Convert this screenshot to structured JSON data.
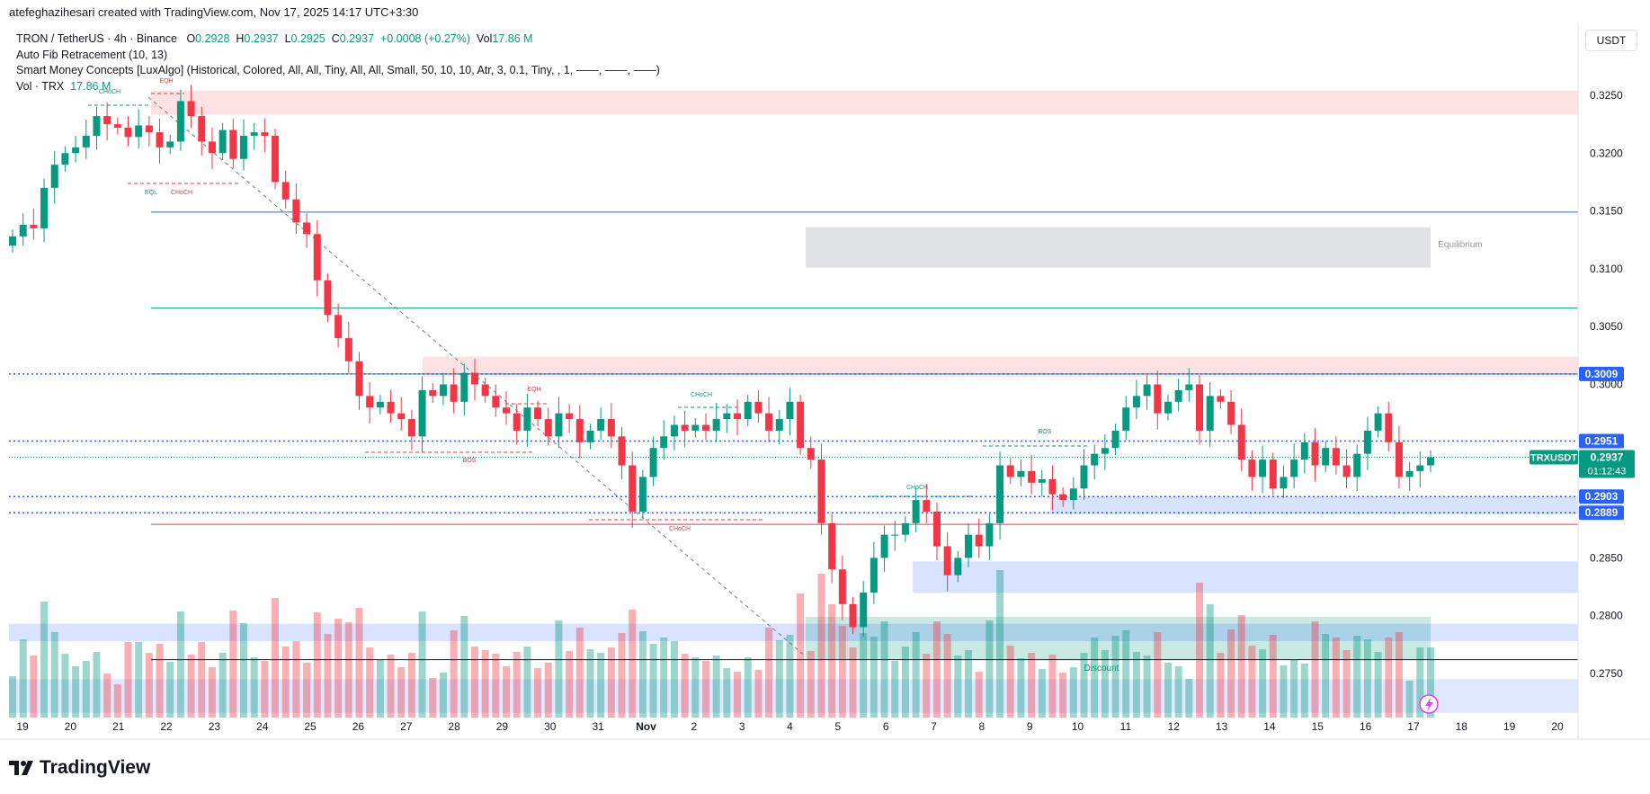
{
  "caption": "atefeghazihesari created with TradingView.com, Nov 17, 2025 14:17 UTC+3:30",
  "legend": {
    "symbol": "TRON / TetherUS · 4h · Binance",
    "o_label": "O",
    "o": "0.2928",
    "h_label": "H",
    "h": "0.2937",
    "l_label": "L",
    "l": "0.2925",
    "c_label": "C",
    "c": "0.2937",
    "change": "+0.0008 (+0.27%)",
    "vol_label": "Vol",
    "vol": "17.86 M",
    "indicator1": "Auto Fib Retracement (10, 13)",
    "indicator2": "Smart Money Concepts [LuxAlgo] (Historical, Colored, All, All, Tiny, All, All, Small, 50, 10, 10, Atr, 3, 0.1, Tiny, , 1, ——, ——, ——)",
    "vol_row_label": "Vol · TRX",
    "vol_row_value": "17.86 M"
  },
  "currency": "USDT",
  "footer_brand": "TradingView",
  "colors": {
    "up": "#089981",
    "down": "#f23645",
    "accent": "#2962ff"
  },
  "chart_data": {
    "type": "candlestick",
    "yaxis_ticks": [
      "0.3250",
      "0.3200",
      "0.3150",
      "0.3100",
      "0.3050",
      "0.3000",
      "0.2850",
      "0.2800",
      "0.2750"
    ],
    "y_range": [
      0.2712,
      0.3278
    ],
    "xaxis_ticks": [
      "19",
      "20",
      "21",
      "22",
      "23",
      "24",
      "25",
      "26",
      "27",
      "28",
      "29",
      "30",
      "31",
      "Nov",
      "2",
      "3",
      "4",
      "5",
      "6",
      "7",
      "8",
      "9",
      "10",
      "11",
      "12",
      "13",
      "14",
      "15",
      "16",
      "17",
      "18",
      "19",
      "20"
    ],
    "price_labels": [
      {
        "value": 0.3009,
        "text": "0.3009",
        "color": "#2962ff"
      },
      {
        "value": 0.2951,
        "text": "0.2951",
        "color": "#2962ff"
      },
      {
        "value": 0.2903,
        "text": "0.2903",
        "color": "#2962ff"
      },
      {
        "value": 0.2889,
        "text": "0.2889",
        "color": "#2962ff"
      }
    ],
    "last_price": {
      "symbol": "TRXUSDT",
      "value": 0.2937,
      "text": "0.2937",
      "countdown": "01:12:43"
    },
    "annotations": [
      "CHoCH",
      "EQH",
      "EQL",
      "CHoCH",
      "EQH",
      "BOS",
      "CHoCH",
      "CHoCH",
      "CHoCH",
      "BOS",
      "Equilibrium",
      "Discount"
    ],
    "candles_close_path": [
      0.3128,
      0.3138,
      0.3135,
      0.317,
      0.319,
      0.32,
      0.3205,
      0.3215,
      0.3232,
      0.3225,
      0.3222,
      0.3214,
      0.3224,
      0.3218,
      0.3205,
      0.321,
      0.3245,
      0.3232,
      0.321,
      0.32,
      0.322,
      0.3195,
      0.3215,
      0.3218,
      0.3215,
      0.3175,
      0.316,
      0.314,
      0.313,
      0.309,
      0.306,
      0.304,
      0.302,
      0.299,
      0.298,
      0.2985,
      0.2975,
      0.297,
      0.2955,
      0.2995,
      0.299,
      0.3,
      0.2985,
      0.301,
      0.3,
      0.299,
      0.298,
      0.2975,
      0.296,
      0.298,
      0.297,
      0.2955,
      0.2975,
      0.297,
      0.295,
      0.296,
      0.297,
      0.2955,
      0.293,
      0.289,
      0.292,
      0.2945,
      0.2955,
      0.2965,
      0.296,
      0.2965,
      0.296,
      0.297,
      0.2975,
      0.297,
      0.2985,
      0.2975,
      0.296,
      0.297,
      0.2985,
      0.2945,
      0.2935,
      0.288,
      0.284,
      0.281,
      0.279,
      0.282,
      0.285,
      0.287,
      0.287,
      0.288,
      0.29,
      0.289,
      0.286,
      0.2835,
      0.285,
      0.287,
      0.286,
      0.288,
      0.293,
      0.292,
      0.2925,
      0.2915,
      0.2918,
      0.2905,
      0.29,
      0.291,
      0.293,
      0.294,
      0.2945,
      0.296,
      0.298,
      0.299,
      0.3,
      0.2975,
      0.2985,
      0.2995,
      0.3,
      0.296,
      0.299,
      0.2985,
      0.2965,
      0.2935,
      0.292,
      0.2935,
      0.291,
      0.292,
      0.2935,
      0.295,
      0.293,
      0.2945,
      0.293,
      0.292,
      0.294,
      0.296,
      0.2975,
      0.295,
      0.292,
      0.2925,
      0.293,
      0.2937
    ],
    "volume_histogram": "relative bars along bottom of chart",
    "zones": [
      {
        "name": "supply-zone-top",
        "from": 0.3233,
        "to": 0.3254
      },
      {
        "name": "equilibrium-zone",
        "from": 0.3101,
        "to": 0.3136
      },
      {
        "name": "supply-zone-mid",
        "from": 0.3007,
        "to": 0.3024
      },
      {
        "name": "demand-zone-1",
        "from": 0.2888,
        "to": 0.2903
      },
      {
        "name": "demand-zone-2",
        "from": 0.282,
        "to": 0.2847
      },
      {
        "name": "discount-zone",
        "from": 0.2762,
        "to": 0.2799
      },
      {
        "name": "demand-zone-left",
        "from": 0.2778,
        "to": 0.2793
      },
      {
        "name": "demand-zone-bottom",
        "from": 0.2716,
        "to": 0.2745
      }
    ],
    "horizontal_lines": [
      {
        "value": 0.3149,
        "color": "#2962ff"
      },
      {
        "value": 0.3066,
        "color": "#089981"
      },
      {
        "value": 0.3009,
        "color": "#089981"
      },
      {
        "value": 0.2879,
        "color": "#f23645"
      },
      {
        "value": 0.2762,
        "color": "#131722"
      }
    ]
  }
}
